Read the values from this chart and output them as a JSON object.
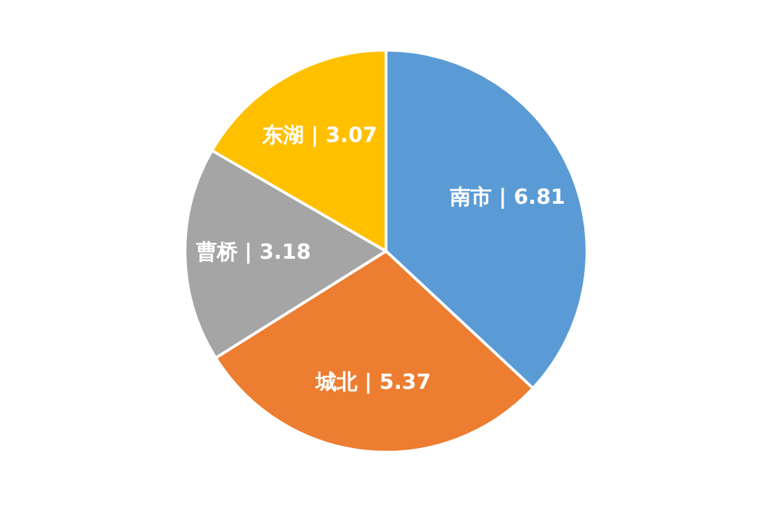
{
  "chart_data": {
    "type": "pie",
    "categories": [
      "南市",
      "城北",
      "曹桥",
      "东湖"
    ],
    "values": [
      6.81,
      5.37,
      3.18,
      3.07
    ],
    "value_labels": [
      "| 6.81",
      "| 5.37",
      "| 3.18",
      "| 3.07"
    ],
    "colors": [
      "#5b9bd5",
      "#ed7d31",
      "#a5a5a5",
      "#ffc000"
    ],
    "legend": false
  }
}
